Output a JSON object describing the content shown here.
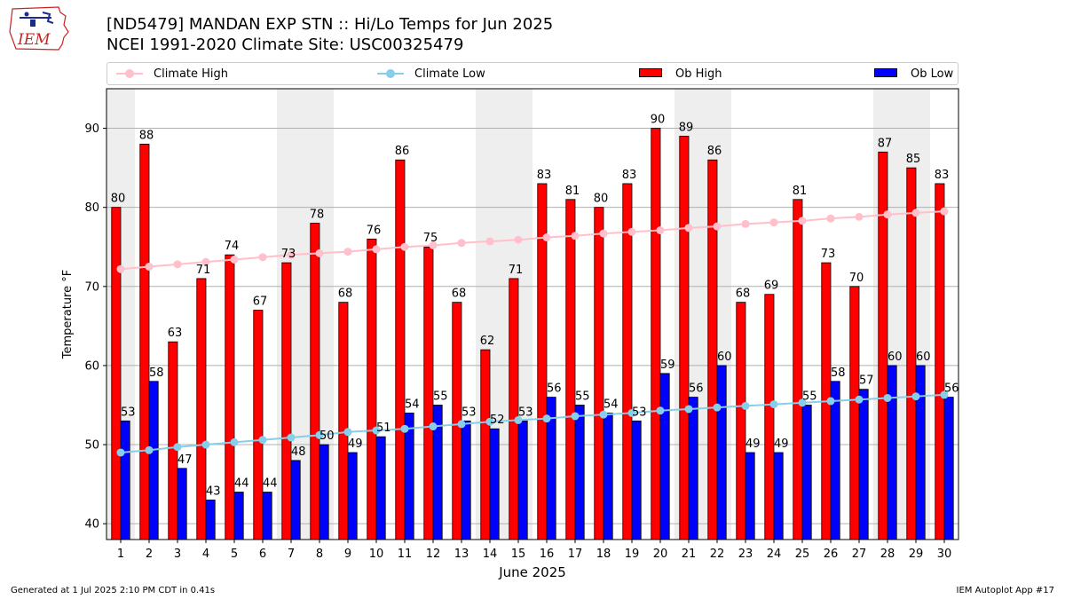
{
  "logo_text": "IEM",
  "title_line1": "[ND5479] MANDAN EXP STN :: Hi/Lo Temps for Jun 2025",
  "title_line2": "NCEI 1991-2020 Climate Site: USC00325479",
  "footer_left": "Generated at 1 Jul 2025 2:10 PM CDT in 0.41s",
  "footer_right": "IEM Autoplot App #17",
  "colors": {
    "ob_high": "#ff0000",
    "ob_low": "#0000ff",
    "climate_high": "#ffc0cb",
    "climate_low": "#87ceeb",
    "weekend_band": "#eeeeee",
    "grid": "#b0b0b0"
  },
  "legend": [
    {
      "label": "Climate High",
      "kind": "line",
      "color": "#ffc0cb"
    },
    {
      "label": "Climate Low",
      "kind": "line",
      "color": "#87ceeb"
    },
    {
      "label": "Ob High",
      "kind": "bar",
      "color": "#ff0000"
    },
    {
      "label": "Ob Low",
      "kind": "bar",
      "color": "#0000ff"
    }
  ],
  "chart_data": {
    "type": "bar",
    "title": "[ND5479] MANDAN EXP STN :: Hi/Lo Temps for Jun 2025",
    "subtitle": "NCEI 1991-2020 Climate Site: USC00325479",
    "xlabel": "June 2025",
    "ylabel": "Temperature °F",
    "ylim": [
      38,
      95
    ],
    "yticks": [
      40,
      50,
      60,
      70,
      80,
      90
    ],
    "categories": [
      "1",
      "2",
      "3",
      "4",
      "5",
      "6",
      "7",
      "8",
      "9",
      "10",
      "11",
      "12",
      "13",
      "14",
      "15",
      "16",
      "17",
      "18",
      "19",
      "20",
      "21",
      "22",
      "23",
      "24",
      "25",
      "26",
      "27",
      "28",
      "29",
      "30"
    ],
    "shaded_days": [
      1,
      7,
      8,
      14,
      15,
      21,
      22,
      28,
      29
    ],
    "grid": true,
    "legend_position": "top",
    "series": [
      {
        "name": "Ob High",
        "kind": "bar",
        "color": "#ff0000",
        "values": [
          80,
          88,
          63,
          71,
          74,
          67,
          73,
          78,
          68,
          76,
          86,
          75,
          68,
          62,
          71,
          83,
          81,
          80,
          83,
          90,
          89,
          86,
          68,
          69,
          81,
          73,
          70,
          87,
          85,
          83
        ]
      },
      {
        "name": "Ob Low",
        "kind": "bar",
        "color": "#0000ff",
        "values": [
          53,
          58,
          47,
          43,
          44,
          44,
          48,
          50,
          49,
          51,
          54,
          55,
          53,
          52,
          53,
          56,
          55,
          54,
          53,
          59,
          56,
          60,
          49,
          49,
          55,
          58,
          57,
          60,
          60,
          56
        ]
      },
      {
        "name": "Climate High",
        "kind": "line",
        "color": "#ffc0cb",
        "values": [
          72.2,
          72.5,
          72.8,
          73.1,
          73.4,
          73.7,
          74.0,
          74.2,
          74.4,
          74.7,
          75.0,
          75.2,
          75.5,
          75.7,
          75.9,
          76.2,
          76.4,
          76.7,
          76.9,
          77.1,
          77.4,
          77.6,
          77.9,
          78.1,
          78.3,
          78.6,
          78.8,
          79.1,
          79.3,
          79.5
        ]
      },
      {
        "name": "Climate Low",
        "kind": "line",
        "color": "#87ceeb",
        "values": [
          49.0,
          49.3,
          49.7,
          50.0,
          50.3,
          50.6,
          50.9,
          51.2,
          51.6,
          51.8,
          52.0,
          52.3,
          52.6,
          52.9,
          53.1,
          53.3,
          53.6,
          53.8,
          54.0,
          54.3,
          54.5,
          54.7,
          54.9,
          55.1,
          55.3,
          55.5,
          55.7,
          55.9,
          56.1,
          56.3
        ]
      }
    ]
  }
}
